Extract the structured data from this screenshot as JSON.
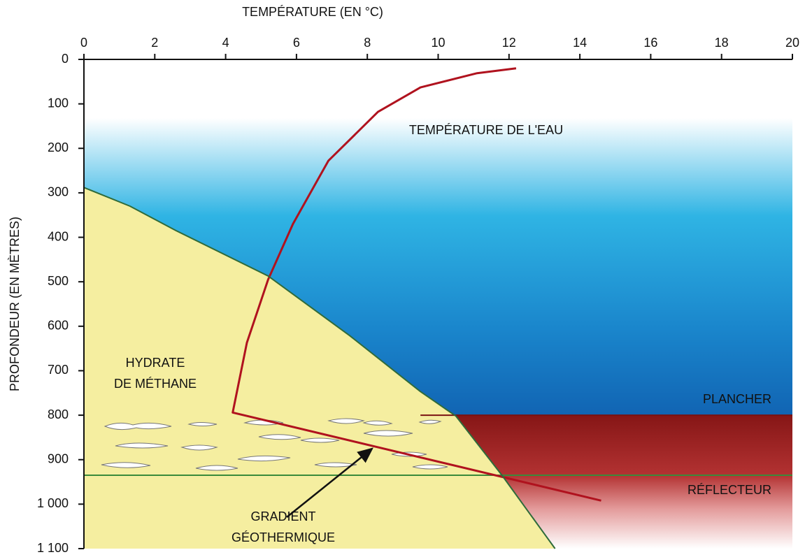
{
  "chart_data": {
    "type": "line",
    "xlabel": "TEMPÉRATURE (EN °C)",
    "ylabel": "PROFONDEUR (EN MÈTRES)",
    "xlim": [
      0,
      20
    ],
    "xticks": [
      0,
      2,
      4,
      6,
      8,
      10,
      12,
      14,
      16,
      18,
      20
    ],
    "ylim": [
      1100,
      0
    ],
    "yticks": [
      0,
      100,
      200,
      300,
      400,
      500,
      600,
      700,
      800,
      900,
      {
        "value": 1000,
        "label": "1 000"
      },
      {
        "value": 1100,
        "label": "1 100"
      }
    ],
    "series": [
      {
        "color": "#b0121e",
        "x": [
          12.2,
          11.1,
          9.5,
          8.3,
          6.9,
          5.9,
          5.2,
          4.6,
          4.2,
          14.6
        ],
        "values": [
          20,
          31,
          63,
          118,
          228,
          370,
          495,
          637,
          794,
          992
        ]
      },
      {
        "color": "#2f6b3a",
        "x": [
          0,
          1.3,
          2.6,
          5.2,
          7.5,
          9.5,
          10.5,
          11.8,
          13.3
        ],
        "values": [
          288,
          330,
          385,
          487,
          621,
          747,
          802,
          935,
          1100
        ]
      }
    ],
    "reference_lines": [
      {
        "label": "PLANCHER",
        "y": 800,
        "color": "#7a1212"
      },
      {
        "label": "RÉFLECTEUR",
        "y": 935,
        "color": "#3a8a3a"
      }
    ],
    "annotations": [
      {
        "lines": [
          "TEMPÉRATURE DE L'EAU"
        ]
      },
      {
        "lines": [
          "HYDRATE",
          "DE MÉTHANE"
        ]
      },
      {
        "lines": [
          "GRADIENT",
          "GÉOTHERMIQUE"
        ]
      }
    ]
  }
}
